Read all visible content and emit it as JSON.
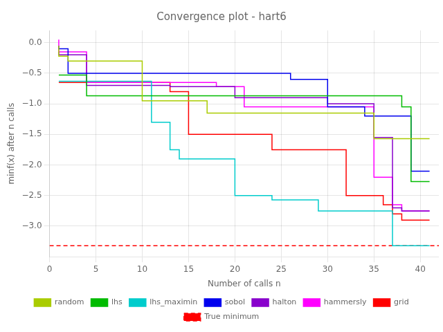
{
  "chart_data": {
    "type": "step",
    "title": "Convergence plot - hart6",
    "xlabel": "Number of calls n",
    "ylabel": "minf(x) after n calls",
    "xlim": [
      0,
      42
    ],
    "ylim": [
      -3.5,
      0.2
    ],
    "xticks": [
      0,
      5,
      10,
      15,
      20,
      25,
      30,
      35,
      40
    ],
    "yticks": [
      {
        "value": 0.0,
        "label": "0.0"
      },
      {
        "value": -0.5,
        "label": "−0.5"
      },
      {
        "value": -1.0,
        "label": "−1.0"
      },
      {
        "value": -1.5,
        "label": "−1.5"
      },
      {
        "value": -2.0,
        "label": "−2.0"
      },
      {
        "value": -2.5,
        "label": "−2.5"
      },
      {
        "value": -3.0,
        "label": "−3.0"
      }
    ],
    "grid": true,
    "legend": "bottom",
    "x": [
      1,
      2,
      3,
      4,
      5,
      6,
      7,
      8,
      9,
      10,
      11,
      12,
      13,
      14,
      15,
      16,
      17,
      18,
      19,
      20,
      21,
      22,
      23,
      24,
      25,
      26,
      27,
      28,
      29,
      30,
      31,
      32,
      33,
      34,
      35,
      36,
      37,
      38,
      39,
      40,
      41
    ],
    "series": [
      {
        "name": "random",
        "color": "#aacc00",
        "line_style": "solid",
        "values": [
          -0.05,
          -0.22,
          -0.3,
          -0.3,
          -0.3,
          -0.3,
          -0.3,
          -0.3,
          -0.3,
          -0.3,
          -0.95,
          -0.95,
          -0.95,
          -0.95,
          -0.95,
          -0.95,
          -0.95,
          -1.15,
          -1.15,
          -1.15,
          -1.15,
          -1.15,
          -1.15,
          -1.15,
          -1.15,
          -1.15,
          -1.15,
          -1.15,
          -1.15,
          -1.15,
          -1.15,
          -1.15,
          -1.15,
          -1.15,
          -1.15,
          -1.57,
          -1.57,
          -1.57,
          -1.57,
          -1.57,
          -1.57
        ]
      },
      {
        "name": "lhs",
        "color": "#00bb00",
        "line_style": "solid",
        "values": [
          -0.53,
          -0.53,
          -0.53,
          -0.53,
          -0.87,
          -0.87,
          -0.87,
          -0.87,
          -0.87,
          -0.87,
          -0.87,
          -0.87,
          -0.87,
          -0.87,
          -0.87,
          -0.87,
          -0.87,
          -0.87,
          -0.87,
          -0.87,
          -0.87,
          -0.87,
          -0.87,
          -0.87,
          -0.87,
          -0.87,
          -0.87,
          -0.87,
          -0.87,
          -0.87,
          -0.87,
          -0.87,
          -0.87,
          -0.87,
          -0.87,
          -0.87,
          -0.87,
          -0.87,
          -1.05,
          -2.27,
          -2.27
        ]
      },
      {
        "name": "lhs_maximin",
        "color": "#00cccc",
        "line_style": "solid",
        "values": [
          -0.63,
          -0.63,
          -0.63,
          -0.63,
          -0.63,
          -0.63,
          -0.63,
          -0.63,
          -0.63,
          -0.63,
          -0.63,
          -1.3,
          -1.3,
          -1.75,
          -1.9,
          -1.9,
          -1.9,
          -1.9,
          -1.9,
          -1.9,
          -2.5,
          -2.5,
          -2.5,
          -2.5,
          -2.57,
          -2.57,
          -2.57,
          -2.57,
          -2.57,
          -2.75,
          -2.75,
          -2.75,
          -2.75,
          -2.75,
          -2.75,
          -2.75,
          -2.75,
          -3.32,
          -3.32,
          -3.32,
          -3.32
        ]
      },
      {
        "name": "sobol",
        "color": "#0000ee",
        "line_style": "solid",
        "values": [
          -0.05,
          -0.1,
          -0.5,
          -0.5,
          -0.5,
          -0.5,
          -0.5,
          -0.5,
          -0.5,
          -0.5,
          -0.5,
          -0.5,
          -0.5,
          -0.5,
          -0.5,
          -0.5,
          -0.5,
          -0.5,
          -0.5,
          -0.5,
          -0.5,
          -0.5,
          -0.5,
          -0.5,
          -0.5,
          -0.5,
          -0.6,
          -0.6,
          -0.6,
          -0.6,
          -1.05,
          -1.05,
          -1.05,
          -1.05,
          -1.2,
          -1.2,
          -1.2,
          -1.2,
          -1.2,
          -2.1,
          -2.1
        ]
      },
      {
        "name": "halton",
        "color": "#8800cc",
        "line_style": "solid",
        "values": [
          -0.15,
          -0.2,
          -0.2,
          -0.2,
          -0.7,
          -0.7,
          -0.7,
          -0.7,
          -0.7,
          -0.7,
          -0.7,
          -0.7,
          -0.7,
          -0.72,
          -0.72,
          -0.72,
          -0.72,
          -0.72,
          -0.72,
          -0.72,
          -0.9,
          -0.9,
          -0.9,
          -0.9,
          -0.9,
          -0.9,
          -0.9,
          -0.9,
          -0.9,
          -0.9,
          -1.0,
          -1.0,
          -1.0,
          -1.0,
          -1.0,
          -1.55,
          -1.55,
          -2.7,
          -2.75,
          -2.75,
          -2.75
        ]
      },
      {
        "name": "hammersly",
        "color": "#ff00ff",
        "line_style": "solid",
        "values": [
          0.05,
          -0.15,
          -0.15,
          -0.15,
          -0.65,
          -0.65,
          -0.65,
          -0.65,
          -0.65,
          -0.65,
          -0.65,
          -0.65,
          -0.65,
          -0.65,
          -0.65,
          -0.65,
          -0.65,
          -0.65,
          -0.72,
          -0.72,
          -0.72,
          -1.05,
          -1.05,
          -1.05,
          -1.05,
          -1.05,
          -1.05,
          -1.05,
          -1.05,
          -1.05,
          -1.05,
          -1.05,
          -1.05,
          -1.05,
          -1.05,
          -2.2,
          -2.2,
          -2.65,
          -2.75,
          -2.75,
          -2.75
        ]
      },
      {
        "name": "grid",
        "color": "#ff0000",
        "line_style": "solid",
        "values": [
          -0.65,
          -0.65,
          -0.65,
          -0.65,
          -0.65,
          -0.65,
          -0.65,
          -0.65,
          -0.65,
          -0.65,
          -0.65,
          -0.65,
          -0.65,
          -0.8,
          -0.8,
          -1.5,
          -1.5,
          -1.5,
          -1.5,
          -1.5,
          -1.5,
          -1.5,
          -1.5,
          -1.5,
          -1.75,
          -1.75,
          -1.75,
          -1.75,
          -1.75,
          -1.75,
          -1.75,
          -1.75,
          -2.5,
          -2.5,
          -2.5,
          -2.5,
          -2.65,
          -2.8,
          -2.9,
          -2.9,
          -2.9
        ]
      },
      {
        "name": "True minimum",
        "type": "hline",
        "color": "#ff0000",
        "line_style": "dashed",
        "value": -3.32
      }
    ]
  }
}
